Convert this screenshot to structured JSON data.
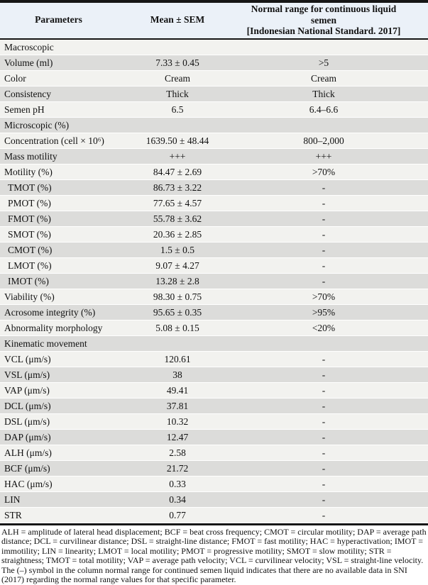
{
  "colors": {
    "header_bg": "#ebf1f8",
    "row_shaded": "#dcdcda",
    "row_light": "#f2f2ef",
    "rule": "#161616"
  },
  "table": {
    "header": {
      "parameters": "Parameters",
      "mean_sem": "Mean ± SEM",
      "normal_range_line1": "Normal range for continuous liquid semen",
      "normal_range_line2": "[Indonesian National Standard. 2017]"
    },
    "rows": [
      {
        "type": "section",
        "param": "Macroscopic",
        "mean": "",
        "normal": ""
      },
      {
        "type": "data",
        "param": "Volume (ml)",
        "mean": "7.33 ± 0.45",
        "normal": ">5"
      },
      {
        "type": "data",
        "param": "Color",
        "mean": "Cream",
        "normal": "Cream"
      },
      {
        "type": "data",
        "param": "Consistency",
        "mean": "Thick",
        "normal": "Thick"
      },
      {
        "type": "data",
        "param": "Semen pH",
        "mean": "6.5",
        "normal": "6.4–6.6"
      },
      {
        "type": "section",
        "param": "Microscopic (%)",
        "mean": "",
        "normal": ""
      },
      {
        "type": "data",
        "param": "Concentration (cell × 10⁶)",
        "mean": "1639.50 ± 48.44",
        "normal": "800–2,000"
      },
      {
        "type": "data",
        "param": "Mass motility",
        "mean": "+++",
        "normal": "+++"
      },
      {
        "type": "data",
        "param": "Motility (%)",
        "mean": "84.47 ± 2.69",
        "normal": ">70%"
      },
      {
        "type": "data",
        "param": "TMOT (%)",
        "mean": "86.73 ± 3.22",
        "normal": "-",
        "indent": true
      },
      {
        "type": "data",
        "param": "PMOT (%)",
        "mean": "77.65 ± 4.57",
        "normal": "-",
        "indent": true
      },
      {
        "type": "data",
        "param": "FMOT (%)",
        "mean": "55.78 ± 3.62",
        "normal": "-",
        "indent": true
      },
      {
        "type": "data",
        "param": "SMOT (%)",
        "mean": "20.36 ± 2.85",
        "normal": "-",
        "indent": true
      },
      {
        "type": "data",
        "param": "CMOT (%)",
        "mean": "1.5 ± 0.5",
        "normal": "-",
        "indent": true
      },
      {
        "type": "data",
        "param": "LMOT (%)",
        "mean": "9.07 ± 4.27",
        "normal": "-",
        "indent": true
      },
      {
        "type": "data",
        "param": "IMOT (%)",
        "mean": "13.28 ± 2.8",
        "normal": "-",
        "indent": true
      },
      {
        "type": "data",
        "param": "Viability (%)",
        "mean": "98.30 ± 0.75",
        "normal": ">70%"
      },
      {
        "type": "data",
        "param": "Acrosome integrity (%)",
        "mean": "95.65 ± 0.35",
        "normal": ">95%"
      },
      {
        "type": "data",
        "param": "Abnormality morphology",
        "mean": "5.08 ± 0.15",
        "normal": "<20%"
      },
      {
        "type": "section",
        "param": "Kinematic movement",
        "mean": "",
        "normal": ""
      },
      {
        "type": "data",
        "param": "VCL (μm/s)",
        "mean": "120.61",
        "normal": "-"
      },
      {
        "type": "data",
        "param": "VSL (μm/s)",
        "mean": "38",
        "normal": "-"
      },
      {
        "type": "data",
        "param": "VAP (μm/s)",
        "mean": "49.41",
        "normal": "-"
      },
      {
        "type": "data",
        "param": "DCL (μm/s)",
        "mean": "37.81",
        "normal": "-"
      },
      {
        "type": "data",
        "param": "DSL (μm/s)",
        "mean": "10.32",
        "normal": "-"
      },
      {
        "type": "data",
        "param": "DAP (μm/s)",
        "mean": "12.47",
        "normal": "-"
      },
      {
        "type": "data",
        "param": "ALH (μm/s)",
        "mean": "2.58",
        "normal": "-"
      },
      {
        "type": "data",
        "param": "BCF (μm/s)",
        "mean": "21.72",
        "normal": "-"
      },
      {
        "type": "data",
        "param": "HAC (μm/s)",
        "mean": "0.33",
        "normal": "-"
      },
      {
        "type": "data",
        "param": "LIN",
        "mean": "0.34",
        "normal": "-"
      },
      {
        "type": "data",
        "param": "STR",
        "mean": "0.77",
        "normal": "-"
      }
    ]
  },
  "footnotes": [
    "ALH = amplitude of lateral head displacement; BCF = beat cross frequency; CMOT = circular motility; DAP = average path distance; DCL = curvilinear distance; DSL = straight-line distance; FMOT = fast motility; HAC = hyperactivation; IMOT = immotility; LIN = linearity; LMOT = local motility; PMOT = progressive motility; SMOT = slow motility; STR = straightness; TMOT = total motility; VAP = average path velocity; VCL = curvilinear velocity; VSL = straight-line velocity.",
    "The (–) symbol in the column normal range for continued semen liquid indicates that there are no available data in SNI (2017) regarding the normal range values for that specific parameter."
  ]
}
